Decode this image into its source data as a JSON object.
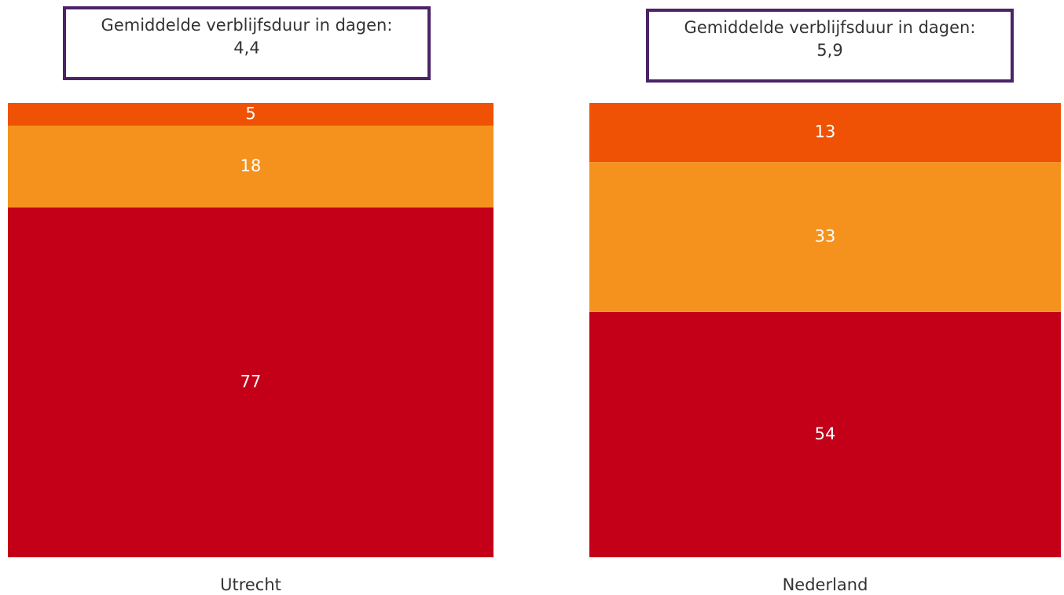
{
  "chart_data": {
    "type": "stacked_bar",
    "categories": [
      "Utrecht",
      "Nederland"
    ],
    "series": [
      {
        "color": "#c40018",
        "values": [
          77,
          54
        ]
      },
      {
        "color": "#f5921e",
        "values": [
          18,
          33
        ]
      },
      {
        "color": "#ef5205",
        "values": [
          5,
          13
        ]
      }
    ],
    "annotations": [
      "Gemiddelde verblijfsduur in dagen: 4,4",
      "Gemiddelde verblijfsduur in dagen: 5,9"
    ],
    "ylim": [
      0,
      100
    ]
  }
}
